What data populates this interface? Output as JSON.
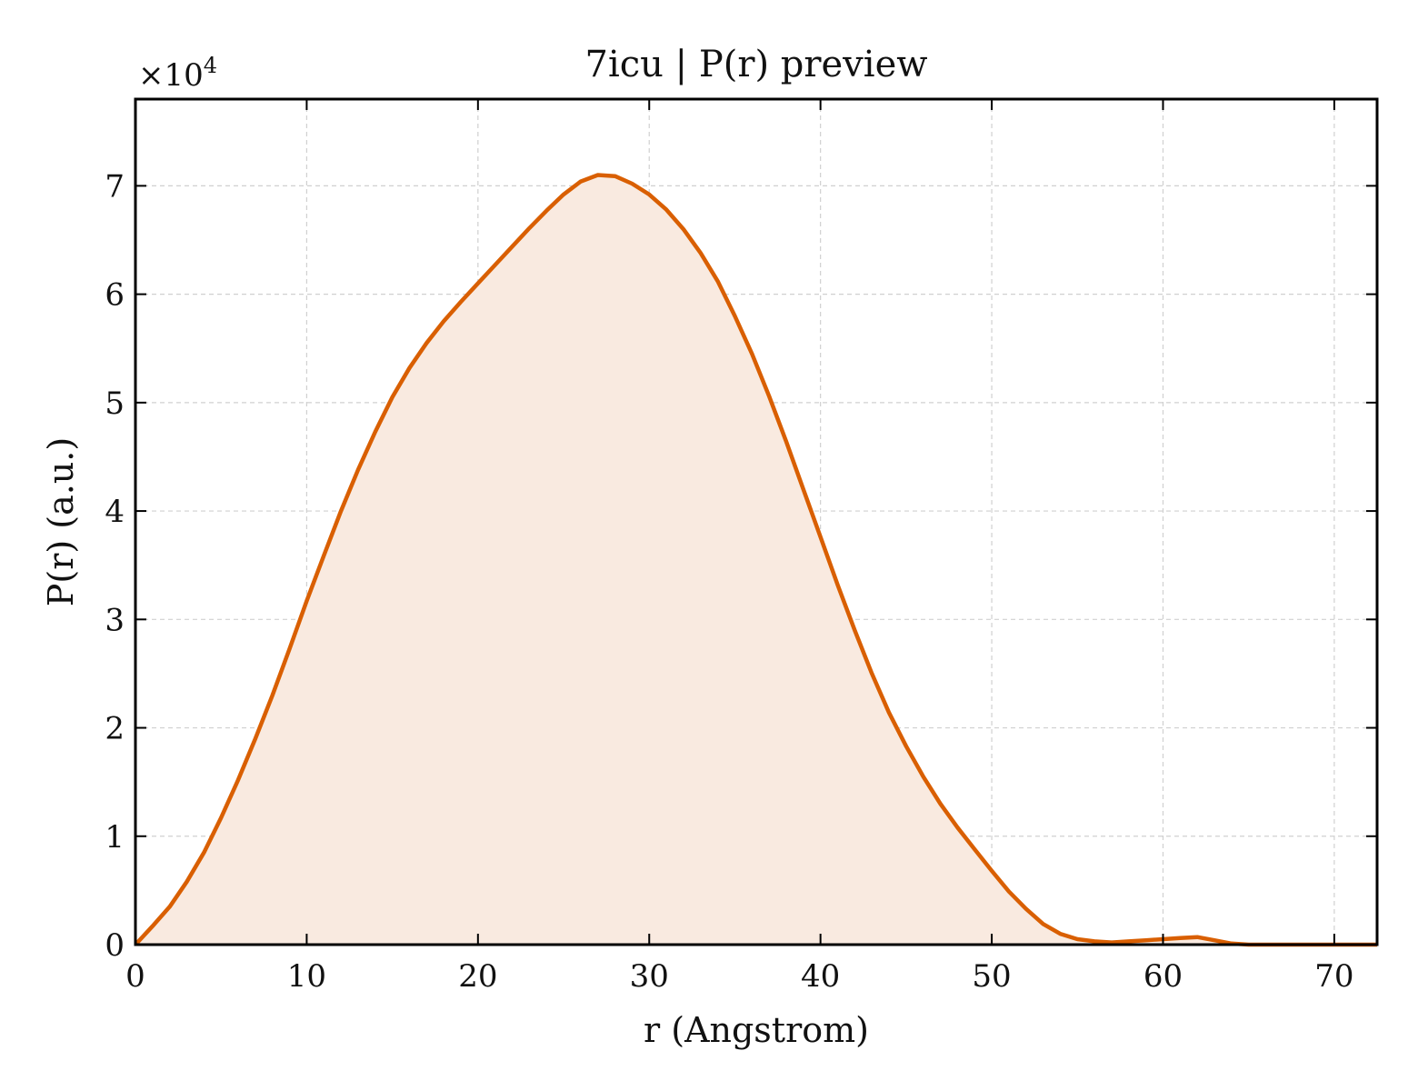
{
  "chart_data": {
    "type": "area",
    "title": "7icu | P(r) preview",
    "xlabel": "r (Angstrom)",
    "ylabel": "P(r) (a.u.)",
    "y_multiplier_label": "×10",
    "y_multiplier_exponent": "4",
    "xlim": [
      0,
      72.5
    ],
    "ylim": [
      0,
      78000
    ],
    "x_ticks": [
      0,
      10,
      20,
      30,
      40,
      50,
      60,
      70
    ],
    "y_ticks": [
      0,
      10000,
      20000,
      30000,
      40000,
      50000,
      60000,
      70000
    ],
    "y_tick_labels": [
      "0",
      "1",
      "2",
      "3",
      "4",
      "5",
      "6",
      "7"
    ],
    "grid": true,
    "colors": {
      "line": "#d95f02",
      "fill": "#f9eae0",
      "grid": "#d0d0d0",
      "axes": "#000000"
    },
    "series": [
      {
        "x": [
          0,
          1,
          2,
          3,
          4,
          5,
          6,
          7,
          8,
          9,
          10,
          11,
          12,
          13,
          14,
          15,
          16,
          17,
          18,
          19,
          20,
          21,
          22,
          23,
          24,
          25,
          26,
          27,
          28,
          29,
          30,
          31,
          32,
          33,
          34,
          35,
          36,
          37,
          38,
          39,
          40,
          41,
          42,
          43,
          44,
          45,
          46,
          47,
          48,
          49,
          50,
          51,
          52,
          53,
          54,
          55,
          56,
          57,
          58,
          59,
          60,
          61,
          62,
          63,
          64,
          65,
          66,
          67,
          68,
          69,
          70,
          71,
          72.5
        ],
        "y": [
          0,
          1700,
          3500,
          5800,
          8500,
          11700,
          15200,
          19000,
          23000,
          27300,
          31700,
          35900,
          40000,
          43800,
          47300,
          50500,
          53200,
          55500,
          57500,
          59300,
          61000,
          62700,
          64400,
          66100,
          67700,
          69200,
          70400,
          71000,
          70900,
          70200,
          69200,
          67800,
          66000,
          63800,
          61200,
          58000,
          54500,
          50600,
          46400,
          42000,
          37600,
          33200,
          29000,
          25000,
          21400,
          18300,
          15500,
          13000,
          10800,
          8800,
          6800,
          4900,
          3300,
          1900,
          1000,
          500,
          300,
          200,
          300,
          400,
          500,
          600,
          700,
          400,
          100,
          0,
          0,
          0,
          0,
          0,
          0,
          0,
          0
        ]
      }
    ]
  }
}
